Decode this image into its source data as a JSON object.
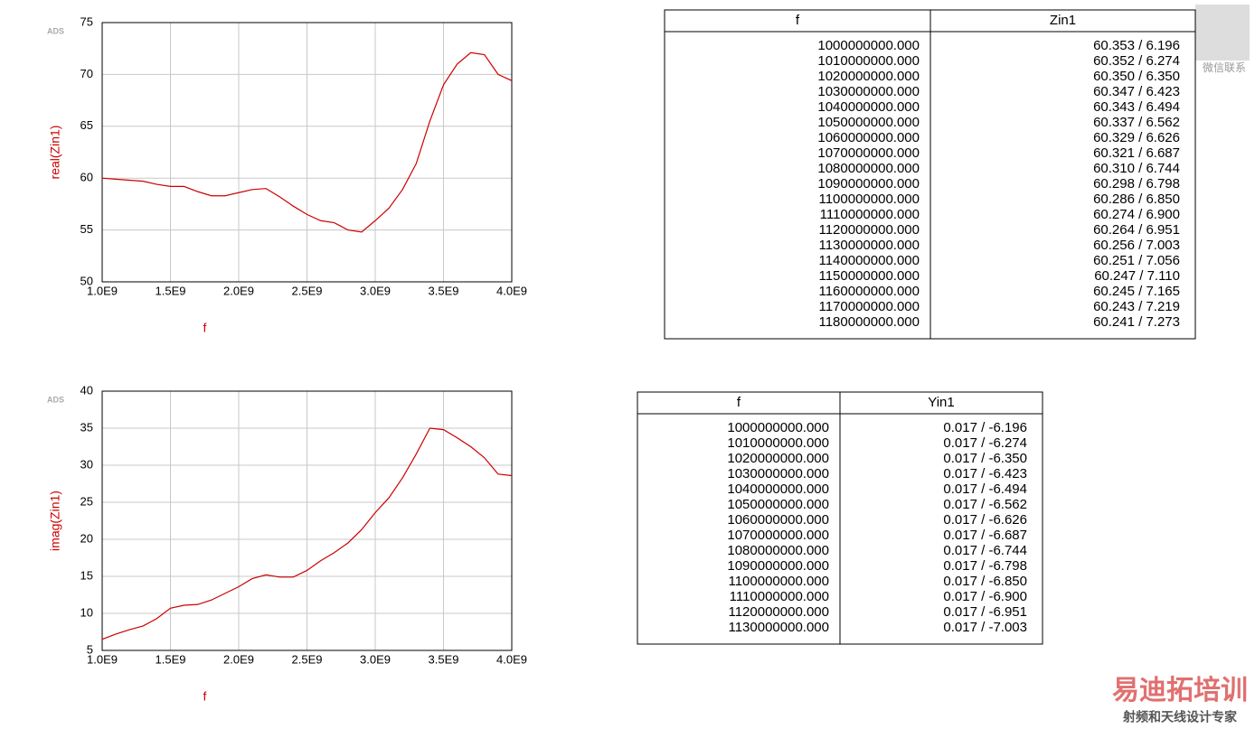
{
  "chart_data": [
    {
      "type": "line",
      "logo": "ADS",
      "xlabel": "f",
      "ylabel": "real(Zin1)",
      "color": "#cc0000",
      "grid": true,
      "x": [
        1000000000,
        1100000000,
        1200000000,
        1300000000,
        1400000000,
        1500000000,
        1600000000,
        1700000000,
        1800000000,
        1900000000,
        2000000000,
        2100000000,
        2200000000,
        2300000000,
        2400000000,
        2500000000,
        2600000000,
        2700000000,
        2800000000,
        2900000000,
        3000000000,
        3100000000,
        3200000000,
        3300000000,
        3400000000,
        3500000000,
        3600000000,
        3700000000,
        3800000000,
        3900000000,
        4000000000
      ],
      "values": [
        60,
        59.9,
        59.8,
        59.7,
        59.4,
        59.2,
        59.2,
        58.7,
        58.3,
        58.3,
        58.6,
        58.9,
        59.0,
        58.2,
        57.3,
        56.5,
        55.9,
        55.7,
        55.0,
        54.8,
        55.9,
        57.1,
        58.9,
        61.4,
        65.5,
        69.0,
        71.0,
        72.1,
        71.9,
        70.0,
        69.4
      ],
      "xlim": [
        1000000000,
        4000000000
      ],
      "xticks": [
        {
          "value": 1000000000,
          "label": "1.0E9"
        },
        {
          "value": 1500000000,
          "label": "1.5E9"
        },
        {
          "value": 2000000000,
          "label": "2.0E9"
        },
        {
          "value": 2500000000,
          "label": "2.5E9"
        },
        {
          "value": 3000000000,
          "label": "3.0E9"
        },
        {
          "value": 3500000000,
          "label": "3.5E9"
        },
        {
          "value": 4000000000,
          "label": "4.0E9"
        }
      ],
      "ylim": [
        50,
        75
      ],
      "yticks": [
        50,
        55,
        60,
        65,
        70,
        75
      ]
    },
    {
      "type": "line",
      "logo": "ADS",
      "xlabel": "f",
      "ylabel": "imag(Zin1)",
      "color": "#cc0000",
      "grid": true,
      "x": [
        1000000000,
        1100000000,
        1200000000,
        1300000000,
        1400000000,
        1500000000,
        1600000000,
        1700000000,
        1800000000,
        1900000000,
        2000000000,
        2100000000,
        2200000000,
        2300000000,
        2400000000,
        2500000000,
        2600000000,
        2700000000,
        2800000000,
        2900000000,
        3000000000,
        3100000000,
        3200000000,
        3300000000,
        3400000000,
        3500000000,
        3600000000,
        3700000000,
        3800000000,
        3900000000,
        4000000000
      ],
      "values": [
        6.5,
        7.2,
        7.8,
        8.3,
        9.3,
        10.7,
        11.1,
        11.2,
        11.8,
        12.7,
        13.6,
        14.7,
        15.2,
        14.9,
        14.9,
        15.8,
        17.1,
        18.2,
        19.5,
        21.3,
        23.6,
        25.6,
        28.3,
        31.5,
        35.0,
        34.8,
        33.7,
        32.5,
        31.0,
        28.8,
        28.6
      ],
      "xlim": [
        1000000000,
        4000000000
      ],
      "xticks": [
        {
          "value": 1000000000,
          "label": "1.0E9"
        },
        {
          "value": 1500000000,
          "label": "1.5E9"
        },
        {
          "value": 2000000000,
          "label": "2.0E9"
        },
        {
          "value": 2500000000,
          "label": "2.5E9"
        },
        {
          "value": 3000000000,
          "label": "3.0E9"
        },
        {
          "value": 3500000000,
          "label": "3.5E9"
        },
        {
          "value": 4000000000,
          "label": "4.0E9"
        }
      ],
      "ylim": [
        5,
        40
      ],
      "yticks": [
        5,
        10,
        15,
        20,
        25,
        30,
        35,
        40
      ]
    }
  ],
  "tables": [
    {
      "header": [
        "f",
        "Zin1"
      ],
      "rows": [
        [
          "1000000000.000",
          "60.353 / 6.196"
        ],
        [
          "1010000000.000",
          "60.352 / 6.274"
        ],
        [
          "1020000000.000",
          "60.350 / 6.350"
        ],
        [
          "1030000000.000",
          "60.347 / 6.423"
        ],
        [
          "1040000000.000",
          "60.343 / 6.494"
        ],
        [
          "1050000000.000",
          "60.337 / 6.562"
        ],
        [
          "1060000000.000",
          "60.329 / 6.626"
        ],
        [
          "1070000000.000",
          "60.321 / 6.687"
        ],
        [
          "1080000000.000",
          "60.310 / 6.744"
        ],
        [
          "1090000000.000",
          "60.298 / 6.798"
        ],
        [
          "1100000000.000",
          "60.286 / 6.850"
        ],
        [
          "1110000000.000",
          "60.274 / 6.900"
        ],
        [
          "1120000000.000",
          "60.264 / 6.951"
        ],
        [
          "1130000000.000",
          "60.256 / 7.003"
        ],
        [
          "1140000000.000",
          "60.251 / 7.056"
        ],
        [
          "1150000000.000",
          "60.247 / 7.110"
        ],
        [
          "1160000000.000",
          "60.245 / 7.165"
        ],
        [
          "1170000000.000",
          "60.243 / 7.219"
        ],
        [
          "1180000000.000",
          "60.241 / 7.273"
        ]
      ]
    },
    {
      "header": [
        "f",
        "Yin1"
      ],
      "rows": [
        [
          "1000000000.000",
          "0.017 / -6.196"
        ],
        [
          "1010000000.000",
          "0.017 / -6.274"
        ],
        [
          "1020000000.000",
          "0.017 / -6.350"
        ],
        [
          "1030000000.000",
          "0.017 / -6.423"
        ],
        [
          "1040000000.000",
          "0.017 / -6.494"
        ],
        [
          "1050000000.000",
          "0.017 / -6.562"
        ],
        [
          "1060000000.000",
          "0.017 / -6.626"
        ],
        [
          "1070000000.000",
          "0.017 / -6.687"
        ],
        [
          "1080000000.000",
          "0.017 / -6.744"
        ],
        [
          "1090000000.000",
          "0.017 / -6.798"
        ],
        [
          "1100000000.000",
          "0.017 / -6.850"
        ],
        [
          "1110000000.000",
          "0.017 / -6.900"
        ],
        [
          "1120000000.000",
          "0.017 / -6.951"
        ],
        [
          "1130000000.000",
          "0.017 / -7.003"
        ]
      ]
    }
  ],
  "watermark": {
    "qr_caption": "微信联系",
    "brand": "易迪拓培训",
    "slogan": "射频和天线设计专家"
  }
}
